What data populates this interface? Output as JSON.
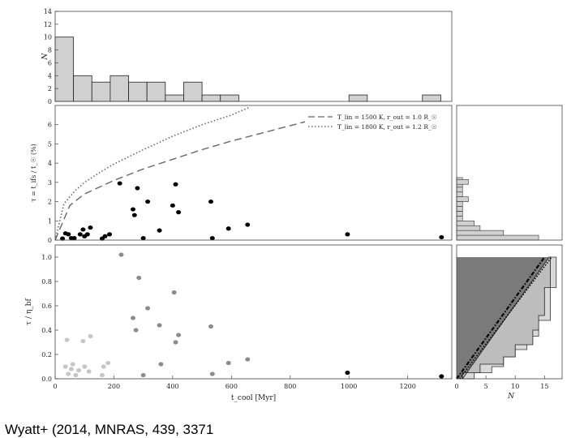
{
  "caption": "Wyatt+ (2014, MNRAS, 439, 3371",
  "colors": {
    "hist_fill": "#d0d0d0",
    "dark_fill": "#7a7a7a",
    "mid_fill": "#bdbdbd",
    "light_fill": "#d9d9d9",
    "point_black": "#000000",
    "point_grey": "#8c8c8c",
    "point_light": "#c6c6c6",
    "curve": "#666666"
  },
  "chart_data": [
    {
      "type": "bar",
      "panel": "top-histogram",
      "ylabel": "N",
      "ylim": [
        0,
        14
      ],
      "yticks": [
        "0",
        "2",
        "4",
        "6",
        "8",
        "10",
        "12",
        "14"
      ],
      "bin_width": 62.5,
      "bin_starts": [
        0,
        62.5,
        125,
        187.5,
        250,
        312.5,
        375,
        437.5,
        500,
        562.5,
        625,
        687.5,
        750,
        812.5,
        875,
        937.5,
        1000,
        1062.5,
        1125,
        1187.5,
        1250
      ],
      "values": [
        10,
        4,
        3,
        4,
        3,
        3,
        1,
        3,
        1,
        1,
        0,
        0,
        0,
        0,
        0,
        0,
        1,
        0,
        0,
        0,
        1
      ]
    },
    {
      "type": "scatter",
      "panel": "middle-scatter",
      "ylabel": "τ = t_ifs / t_☉ (%)",
      "ylim": [
        0,
        7
      ],
      "yticks": [
        "0",
        "1",
        "2",
        "3",
        "4",
        "5",
        "6"
      ],
      "xlim": [
        0,
        1350
      ],
      "legend": {
        "position": "top-right",
        "entries": [
          "T_lin = 1500 K, r_out = 1.0 R_☉",
          "T_lin = 1800 K, r_out = 1.2 R_☉"
        ]
      },
      "series": [
        {
          "x": [
            25,
            35,
            45,
            55,
            65,
            85,
            95,
            100,
            110,
            120,
            160,
            170,
            185,
            220,
            265,
            270,
            280,
            300,
            315,
            355,
            400,
            410,
            420,
            530,
            535,
            590,
            655,
            995,
            1315
          ],
          "y": [
            0.08,
            0.35,
            0.3,
            0.1,
            0.1,
            0.3,
            0.55,
            0.2,
            0.3,
            0.65,
            0.08,
            0.2,
            0.3,
            2.95,
            1.6,
            1.3,
            2.7,
            0.1,
            2.0,
            0.5,
            1.8,
            2.9,
            1.45,
            2.0,
            0.1,
            0.6,
            0.8,
            0.3,
            0.15
          ]
        }
      ],
      "curves": [
        {
          "style": "dashed",
          "x": [
            0,
            50,
            100,
            200,
            300,
            400,
            500,
            600,
            700,
            800,
            850
          ],
          "y": [
            0,
            1.8,
            2.4,
            3.1,
            3.7,
            4.2,
            4.7,
            5.15,
            5.55,
            5.95,
            6.15
          ]
        },
        {
          "style": "dotted",
          "x": [
            0,
            30,
            70,
            100,
            150,
            200,
            300,
            400,
            500,
            600,
            660
          ],
          "y": [
            0,
            1.9,
            2.6,
            3.0,
            3.5,
            3.95,
            4.7,
            5.4,
            6.0,
            6.5,
            6.9
          ]
        }
      ]
    },
    {
      "type": "scatter",
      "panel": "bottom-scatter",
      "ylabel": "τ / η_bf",
      "ylim": [
        0,
        1.1
      ],
      "yticks": [
        "0.0",
        "0.2",
        "0.4",
        "0.6",
        "0.8",
        "1.0"
      ],
      "xlim": [
        0,
        1350
      ],
      "xlabel": "t_cool [Myr]",
      "xticks": [
        "0",
        "200",
        "400",
        "600",
        "800",
        "1000",
        "1200"
      ],
      "series": [
        {
          "shade": "light",
          "x": [
            35,
            40,
            45,
            55,
            60,
            70,
            80,
            95,
            100,
            115,
            120,
            160,
            165,
            180
          ],
          "y": [
            0.1,
            0.32,
            0.04,
            0.08,
            0.12,
            0.03,
            0.07,
            0.31,
            0.1,
            0.06,
            0.35,
            0.03,
            0.1,
            0.13
          ]
        },
        {
          "shade": "grey",
          "x": [
            225,
            265,
            275,
            285,
            300,
            315,
            355,
            360,
            405,
            410,
            420,
            530,
            535,
            590,
            655
          ],
          "y": [
            1.02,
            0.5,
            0.4,
            0.83,
            0.03,
            0.58,
            0.44,
            0.12,
            0.71,
            0.3,
            0.36,
            0.43,
            0.04,
            0.13,
            0.16
          ]
        },
        {
          "shade": "black",
          "x": [
            995,
            1315
          ],
          "y": [
            0.05,
            0.02
          ]
        }
      ]
    },
    {
      "type": "bar",
      "panel": "right-histogram",
      "orientation": "horizontal",
      "ylim": [
        0,
        7
      ],
      "bin_height": 0.25,
      "values": [
        14,
        8,
        4,
        3,
        1,
        1,
        1,
        1,
        1,
        1,
        1,
        1,
        1
      ]
    },
    {
      "type": "area",
      "panel": "bottom-right-cumulative",
      "xlabel": "N",
      "xlim": [
        0,
        18
      ],
      "xticks": [
        "0",
        "5",
        "10",
        "15"
      ],
      "ylim": [
        0,
        1.1
      ],
      "steps_outer_x": [
        3,
        3,
        6,
        6,
        8,
        8,
        10,
        10,
        12,
        12,
        14,
        14,
        16,
        16,
        17,
        17
      ],
      "steps_outer_y": [
        0,
        0.05,
        0.05,
        0.1,
        0.1,
        0.18,
        0.18,
        0.24,
        0.24,
        0.35,
        0.35,
        0.48,
        0.48,
        0.75,
        0.75,
        1.0
      ],
      "steps_inner_x": [
        1,
        1,
        4,
        4,
        8,
        8,
        10,
        10,
        13,
        13,
        14,
        14,
        15,
        15,
        16,
        16
      ],
      "steps_inner_y": [
        0,
        0.05,
        0.05,
        0.12,
        0.12,
        0.18,
        0.18,
        0.28,
        0.28,
        0.4,
        0.4,
        0.52,
        0.52,
        0.75,
        0.75,
        1.0
      ]
    }
  ]
}
